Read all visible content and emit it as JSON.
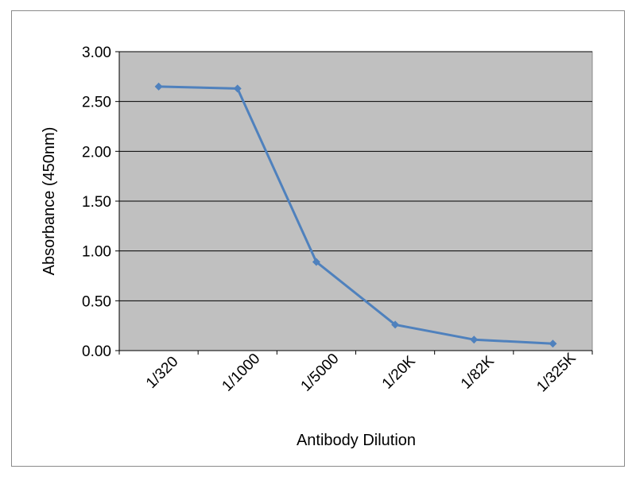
{
  "chart_data": {
    "type": "line",
    "title": "",
    "xlabel": "Antibody Dilution",
    "ylabel": "Absorbance (450nm)",
    "categories": [
      "1/320",
      "1/1000",
      "1/5000",
      "1/20K",
      "1/82K",
      "1/325K"
    ],
    "series": [
      {
        "values": [
          2.65,
          2.63,
          0.89,
          0.26,
          0.11,
          0.07
        ]
      }
    ],
    "ylim": [
      0,
      3
    ],
    "yticks": [
      "0.00",
      "0.50",
      "1.00",
      "1.50",
      "2.00",
      "2.50",
      "3.00"
    ],
    "grid": "horizontal",
    "legend": "none",
    "colors": {
      "plot_background": "#c0c0c0",
      "series": "#4f81bd",
      "gridline": "#000000",
      "frame": "#8a8a8a"
    }
  }
}
